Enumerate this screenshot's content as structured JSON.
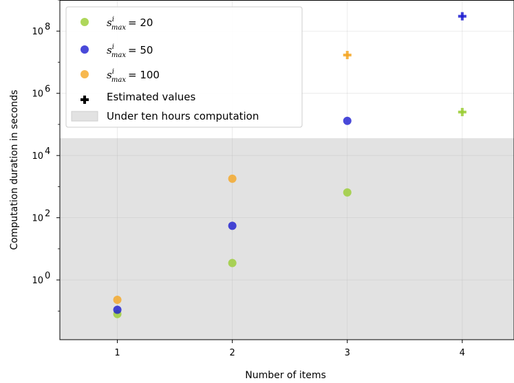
{
  "chart_data": {
    "type": "scatter",
    "xlabel": "Number of items",
    "ylabel": "Computation duration in seconds",
    "yscale": "log",
    "xlim": [
      0.5,
      4.45
    ],
    "ylim": [
      0.012,
      1000000000.0
    ],
    "x_ticks": [
      1,
      2,
      3,
      4
    ],
    "x_tick_labels": [
      "1",
      "2",
      "3",
      "4"
    ],
    "y_ticks": [
      1,
      100,
      10000,
      1000000,
      100000000
    ],
    "y_tick_labels": [
      {
        "base": "10",
        "exp": "0"
      },
      {
        "base": "10",
        "exp": "2"
      },
      {
        "base": "10",
        "exp": "4"
      },
      {
        "base": "10",
        "exp": "6"
      },
      {
        "base": "10",
        "exp": "8"
      }
    ],
    "grid": true,
    "legend_position": "top-left",
    "shaded_region": {
      "label": "Under ten hours computation",
      "y_upper": 36000,
      "color": "#e2e2e2"
    },
    "series": [
      {
        "name_var": "s",
        "name_sup": "i",
        "name_sub": "max",
        "name_rest": "= 20",
        "color": "#9acd32",
        "points": [
          {
            "x": 1,
            "y": 0.08,
            "estimated": false
          },
          {
            "x": 2,
            "y": 3.5,
            "estimated": false
          },
          {
            "x": 3,
            "y": 650,
            "estimated": false
          },
          {
            "x": 4,
            "y": 250000,
            "estimated": true
          }
        ]
      },
      {
        "name_var": "s",
        "name_sup": "i",
        "name_sub": "max",
        "name_rest": "= 50",
        "color": "#1c1cd0",
        "points": [
          {
            "x": 1,
            "y": 0.11,
            "estimated": false
          },
          {
            "x": 2,
            "y": 55,
            "estimated": false
          },
          {
            "x": 3,
            "y": 130000,
            "estimated": false
          },
          {
            "x": 4,
            "y": 300000000,
            "estimated": true
          }
        ]
      },
      {
        "name_var": "s",
        "name_sup": "i",
        "name_sub": "max",
        "name_rest": "= 100",
        "color": "#f5a623",
        "points": [
          {
            "x": 1,
            "y": 0.23,
            "estimated": false
          },
          {
            "x": 2,
            "y": 1800,
            "estimated": false
          },
          {
            "x": 3,
            "y": 17000000,
            "estimated": true
          }
        ]
      }
    ],
    "estimated_legend_label": "Estimated values",
    "estimated_marker_color": "#000000"
  }
}
